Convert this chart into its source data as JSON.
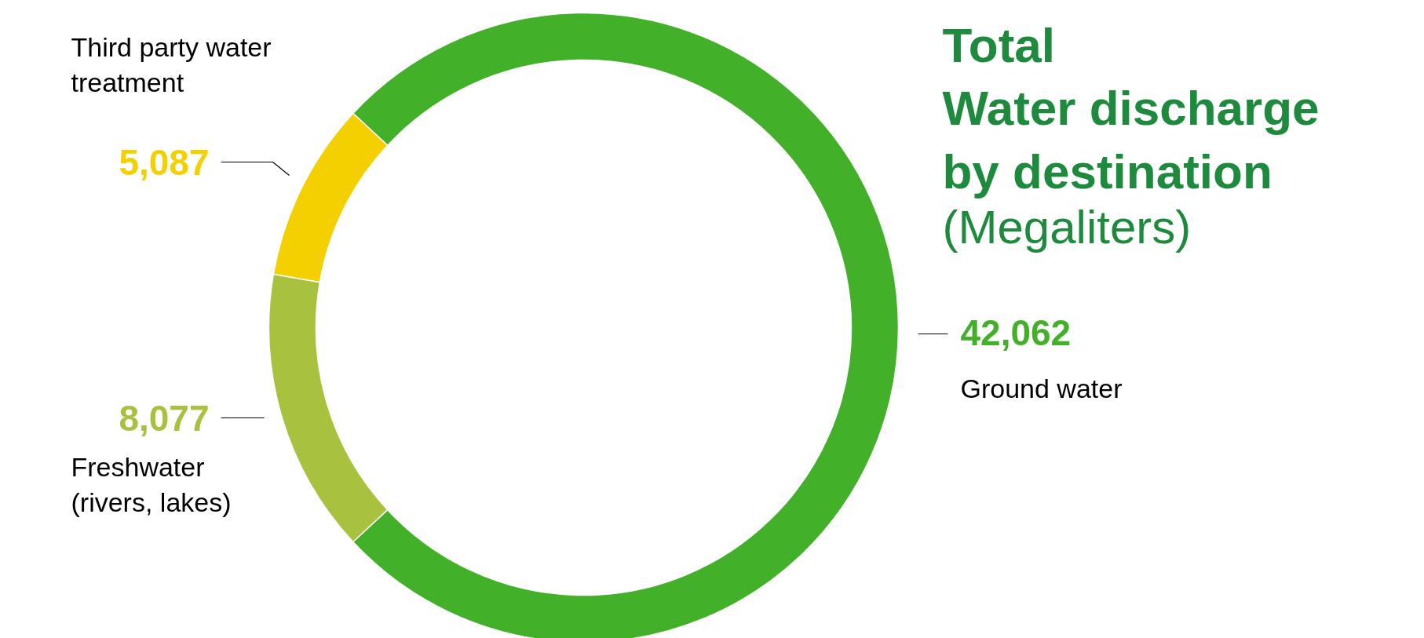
{
  "chart_data": {
    "type": "donut",
    "title": "Total\nWater discharge\nby destination",
    "subtitle": "(Megaliters)",
    "categories": [
      "Ground water",
      "Third party water\ntreatment",
      "Freshwater\n(rivers, lakes)"
    ],
    "values": [
      42062,
      5087,
      8077
    ],
    "colors": [
      "#43b02a",
      "#f5d000",
      "#a8c23f"
    ],
    "value_labels": [
      "42,062",
      "5,087",
      "8,077"
    ]
  }
}
